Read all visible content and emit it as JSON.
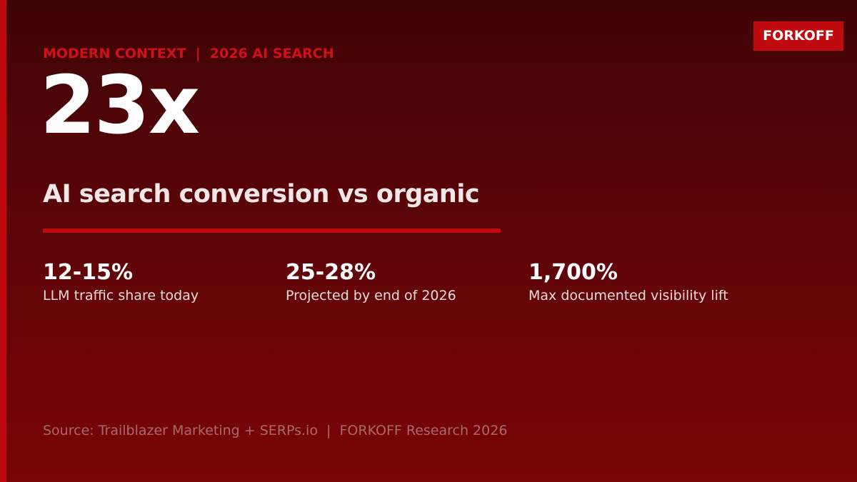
{
  "brand": "FORKOFF",
  "eyebrow": "MODERN CONTEXT  |  2026 AI SEARCH",
  "headline": "23x",
  "subtitle": "AI search conversion vs organic",
  "stats": [
    {
      "value": "12-15%",
      "label": "LLM traffic share today"
    },
    {
      "value": "25-28%",
      "label": "Projected by end of 2026"
    },
    {
      "value": "1,700%",
      "label": "Max documented visibility lift"
    }
  ],
  "source": "Source: Trailblazer Marketing + SERPs.io  |  FORKOFF Research 2026"
}
